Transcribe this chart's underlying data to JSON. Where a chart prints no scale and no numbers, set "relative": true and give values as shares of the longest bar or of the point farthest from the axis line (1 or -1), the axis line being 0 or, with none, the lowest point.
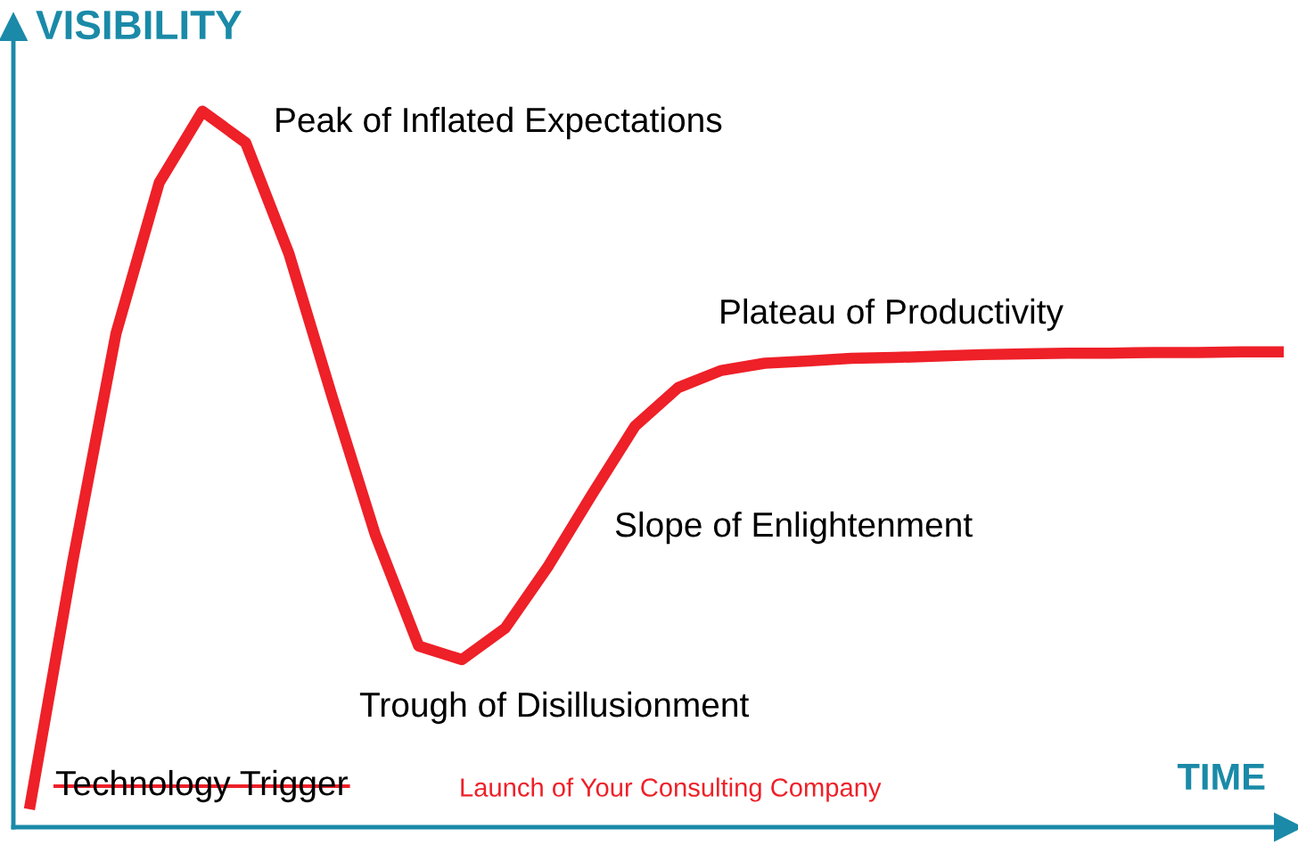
{
  "chart_data": {
    "type": "line",
    "relative": true,
    "xlabel": "TIME",
    "ylabel": "VISIBILITY",
    "categories": [
      null,
      null,
      null,
      null,
      null,
      null,
      null,
      null,
      null,
      null,
      null,
      null,
      null,
      null,
      null,
      null,
      null,
      null,
      null,
      null,
      null,
      null,
      null,
      null,
      null,
      null,
      null,
      null,
      null,
      null
    ],
    "series": [
      {
        "color": "#ee2028",
        "values": [
          0.025,
          0.371,
          0.689,
          0.9,
          1.0,
          0.956,
          0.801,
          0.601,
          0.408,
          0.253,
          0.234,
          0.278,
          0.365,
          0.464,
          0.56,
          0.614,
          0.638,
          0.648,
          0.651,
          0.655,
          0.656,
          0.658,
          0.66,
          0.661,
          0.662,
          0.662,
          0.663,
          0.663,
          0.664,
          0.664
        ]
      }
    ],
    "annotations": [
      "Peak of Inflated Expectations",
      "Plateau of Productivity",
      "Slope of Enlightenment",
      "Trough of Disillusionment",
      "Technology Trigger",
      "Launch of Your Consulting Company"
    ],
    "marker": "none",
    "line_style": "solid"
  }
}
